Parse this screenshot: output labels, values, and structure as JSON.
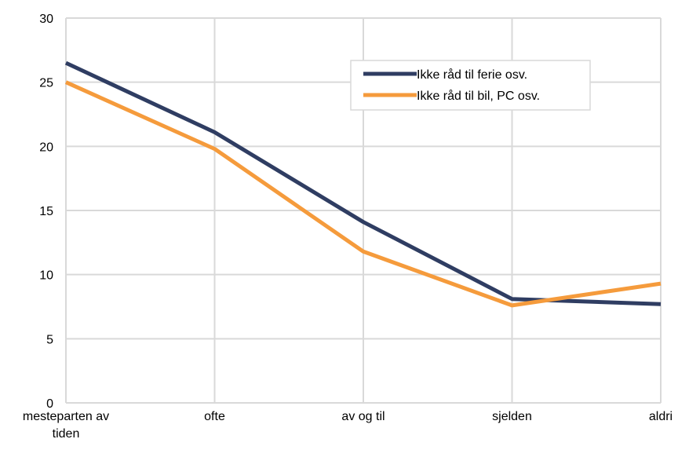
{
  "chart_data": {
    "type": "line",
    "categories": [
      "mesteparten av tiden",
      "ofte",
      "av og til",
      "sjelden",
      "aldri"
    ],
    "series": [
      {
        "name": "Ikke råd til ferie osv.",
        "color": "#2f3d62",
        "values": [
          26.5,
          21.1,
          14.1,
          8.1,
          7.7
        ]
      },
      {
        "name": "Ikke råd til bil, PC osv.",
        "color": "#f59b3c",
        "values": [
          25.0,
          19.8,
          11.8,
          7.6,
          9.3
        ]
      }
    ],
    "ylim": [
      0,
      30
    ],
    "yticks": [
      0,
      5,
      10,
      15,
      20,
      25,
      30
    ],
    "grid": true,
    "legend": "upper right"
  }
}
